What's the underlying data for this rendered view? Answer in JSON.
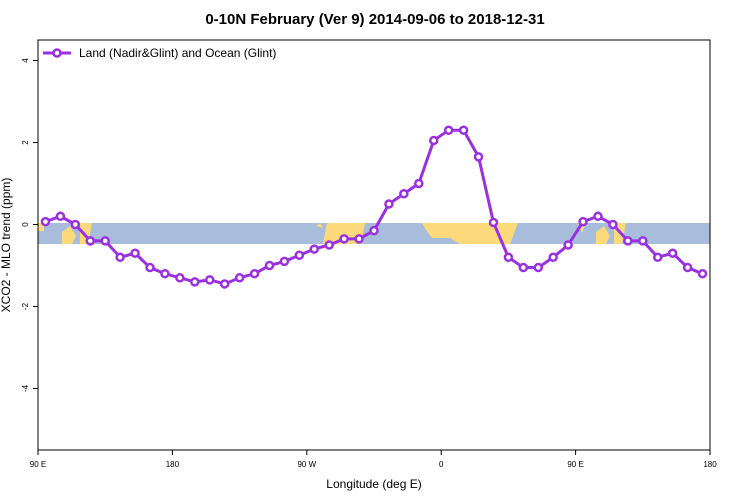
{
  "chart_data": {
    "type": "line",
    "title": "0-10N February (Ver 9)   2014-09-06 to 2018-12-31",
    "xlabel": "Longitude (deg E)",
    "ylabel": "XCO2 - MLO trend (ppm)",
    "x": [
      95,
      105,
      115,
      125,
      135,
      145,
      155,
      165,
      175,
      185,
      195,
      205,
      215,
      225,
      235,
      245,
      255,
      265,
      275,
      285,
      295,
      305,
      315,
      325,
      335,
      345,
      355,
      365,
      375,
      385,
      395,
      405,
      415,
      425,
      435,
      445,
      455,
      465,
      475,
      485,
      495,
      505,
      515,
      525,
      535
    ],
    "series": [
      {
        "name": "Land (Nadir&Glint) and Ocean (Glint)",
        "color": "#9b30e0",
        "values": [
          0.07,
          0.2,
          0,
          -0.4,
          -0.4,
          -0.8,
          -0.7,
          -1.05,
          -1.2,
          -1.3,
          -1.4,
          -1.35,
          -1.45,
          -1.3,
          -1.2,
          -1.0,
          -0.9,
          -0.75,
          -0.6,
          -0.5,
          -0.35,
          -0.35,
          -0.15,
          0.5,
          0.75,
          1.0,
          2.05,
          2.3,
          2.3,
          1.65,
          0.05,
          -0.8,
          -1.05,
          -1.05,
          -0.8,
          -0.5,
          0.07,
          0.2,
          0,
          -0.4,
          -0.4,
          -0.8,
          -0.7,
          -1.05,
          -1.2
        ]
      }
    ],
    "xlim": [
      90,
      540
    ],
    "xticks": [
      {
        "value": 90,
        "label": "90 E"
      },
      180,
      {
        "value": 270,
        "label": "90 W"
      },
      {
        "value": 360,
        "label": "0"
      },
      {
        "value": 450,
        "label": "90 E"
      },
      {
        "value": 540,
        "label": "180"
      }
    ],
    "ylim": [
      -5.5,
      4.5
    ],
    "yticks": [
      -4,
      -2,
      0,
      2,
      4
    ],
    "legend": "top-left"
  }
}
